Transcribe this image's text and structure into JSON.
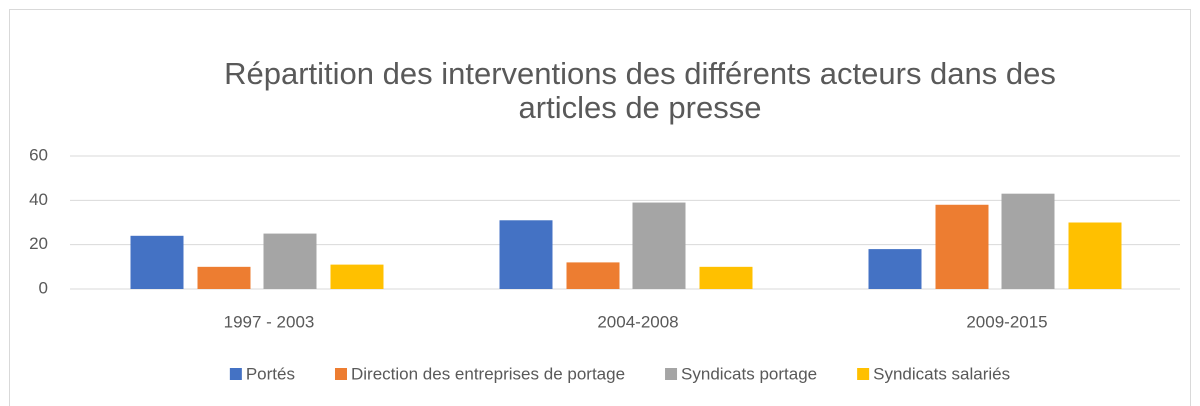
{
  "chart_data": {
    "type": "bar",
    "title": [
      "Répartition des interventions des différents acteurs dans des",
      "articles de presse"
    ],
    "categories": [
      "1997 - 2003",
      "2004-2008",
      "2009-2015"
    ],
    "series": [
      {
        "name": "Portés",
        "color": "#4472c4",
        "values": [
          24,
          31,
          18
        ]
      },
      {
        "name": "Direction des entreprises de portage",
        "color": "#ed7d31",
        "values": [
          10,
          12,
          38
        ]
      },
      {
        "name": "Syndicats portage",
        "color": "#a5a5a5",
        "values": [
          25,
          39,
          43
        ]
      },
      {
        "name": "Syndicats salariés",
        "color": "#ffc000",
        "values": [
          11,
          10,
          30
        ]
      }
    ],
    "ylim": [
      0,
      60
    ],
    "yticks": [
      0,
      20,
      40,
      60
    ],
    "grid": true,
    "legend": "bottom"
  }
}
